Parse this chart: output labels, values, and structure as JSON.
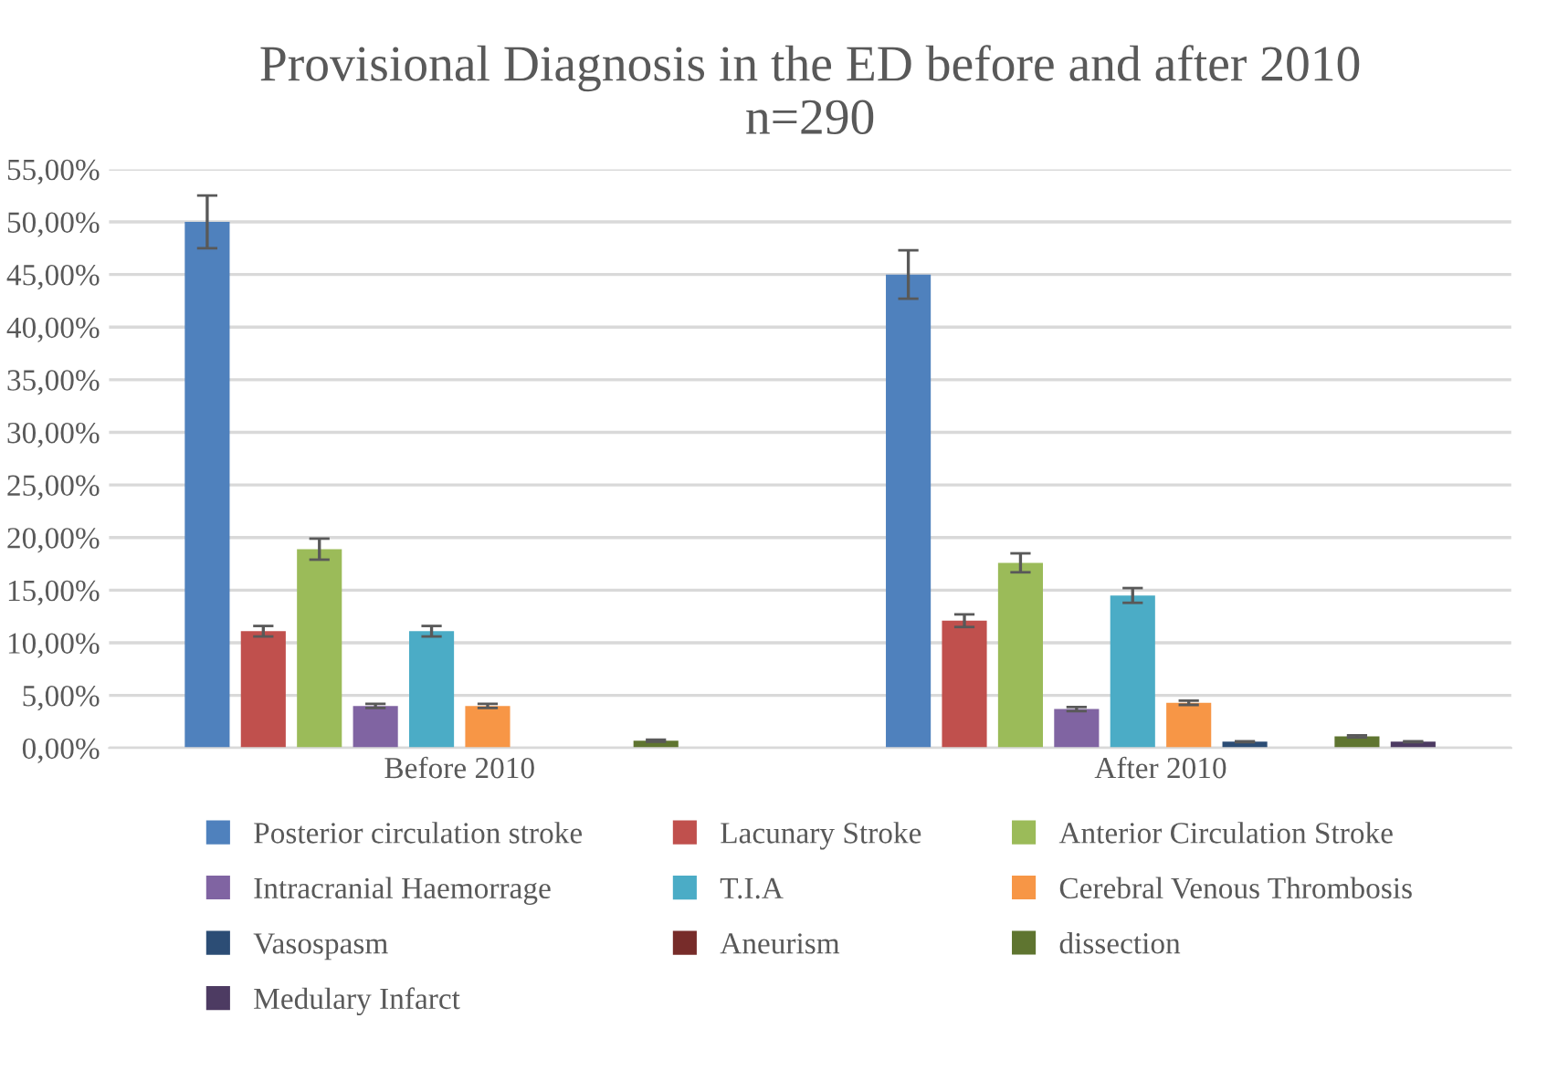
{
  "chart_data": {
    "type": "bar",
    "title": "Provisional Diagnosis in the ED before and after 2010\nn=290",
    "categories": [
      "Before 2010",
      "After 2010"
    ],
    "series": [
      {
        "name": "Posterior circulation stroke",
        "color": "#4f81bd",
        "values": [
          50,
          45
        ],
        "errors": [
          2.5,
          2.3
        ]
      },
      {
        "name": "Lacunary Stroke",
        "color": "#c0504d",
        "values": [
          11.1,
          12.1
        ],
        "errors": [
          0.5,
          0.6
        ]
      },
      {
        "name": "Anterior Circulation Stroke",
        "color": "#9bbb59",
        "values": [
          18.9,
          17.6
        ],
        "errors": [
          1,
          0.9
        ]
      },
      {
        "name": "Intracranial Haemorrage",
        "color": "#8064a2",
        "values": [
          4,
          3.7
        ],
        "errors": [
          0.2,
          0.2
        ]
      },
      {
        "name": "T.I.A",
        "color": "#4bacc6",
        "values": [
          11.1,
          14.5
        ],
        "errors": [
          0.5,
          0.7
        ]
      },
      {
        "name": "Cerebral Venous Thrombosis",
        "color": "#f79646",
        "values": [
          4,
          4.3
        ],
        "errors": [
          0.2,
          0.2
        ]
      },
      {
        "name": "Vasospasm",
        "color": "#2c4d75",
        "values": [
          null,
          0.6
        ],
        "errors": [
          null,
          0.05
        ]
      },
      {
        "name": "Aneurism",
        "color": "#772c2a",
        "values": [
          null,
          null
        ],
        "errors": [
          null,
          null
        ]
      },
      {
        "name": "dissection",
        "color": "#5f7530",
        "values": [
          0.7,
          1.1
        ],
        "errors": [
          0.1,
          0.1
        ]
      },
      {
        "name": "Medulary Infarct",
        "color": "#4d3b62",
        "values": [
          null,
          0.6
        ],
        "errors": [
          null,
          0.05
        ]
      }
    ],
    "ylim": [
      0,
      55
    ],
    "yticks": [
      {
        "value": 0,
        "label": "0,00%"
      },
      {
        "value": 5,
        "label": "5,00%"
      },
      {
        "value": 10,
        "label": "10,00%"
      },
      {
        "value": 15,
        "label": "15,00%"
      },
      {
        "value": 20,
        "label": "20,00%"
      },
      {
        "value": 25,
        "label": "25,00%"
      },
      {
        "value": 30,
        "label": "30,00%"
      },
      {
        "value": 35,
        "label": "35,00%"
      },
      {
        "value": 40,
        "label": "40,00%"
      },
      {
        "value": 45,
        "label": "45,00%"
      },
      {
        "value": 50,
        "label": "50,00%"
      },
      {
        "value": 55,
        "label": "55,00%"
      }
    ],
    "grid": "y",
    "legend": "bottom"
  }
}
